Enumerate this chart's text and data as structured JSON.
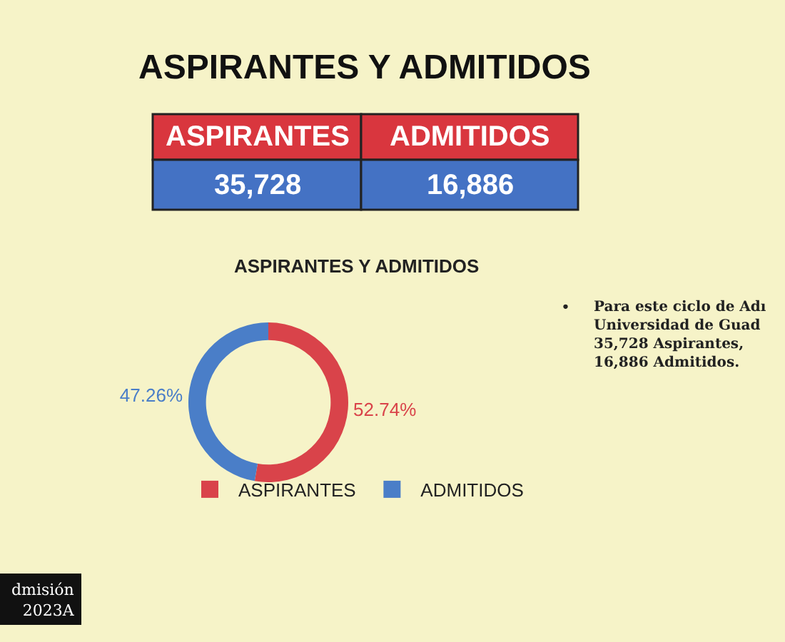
{
  "chart_data": {
    "type": "donut",
    "title": "ASPIRANTES Y ADMITIDOS",
    "subtitle": "ASPIRANTES Y ADMITIDOS",
    "categories": [
      "ASPIRANTES",
      "ADMITIDOS"
    ],
    "values": [
      52.74,
      47.26
    ],
    "value_labels": [
      "52.74%",
      "47.26%"
    ],
    "colors": [
      "#d9434a",
      "#4a7ec8"
    ],
    "legend": "bottom",
    "annotations": [
      "ASPIRANTES",
      "ADMITIDOS",
      "35,728",
      "16,886",
      "Para este ciclo de Adı\nUniversidad de Guad\n35,728 Aspirantes,\n16,886 Admitidos.",
      "dmisión\n2023A",
      "•"
    ]
  }
}
